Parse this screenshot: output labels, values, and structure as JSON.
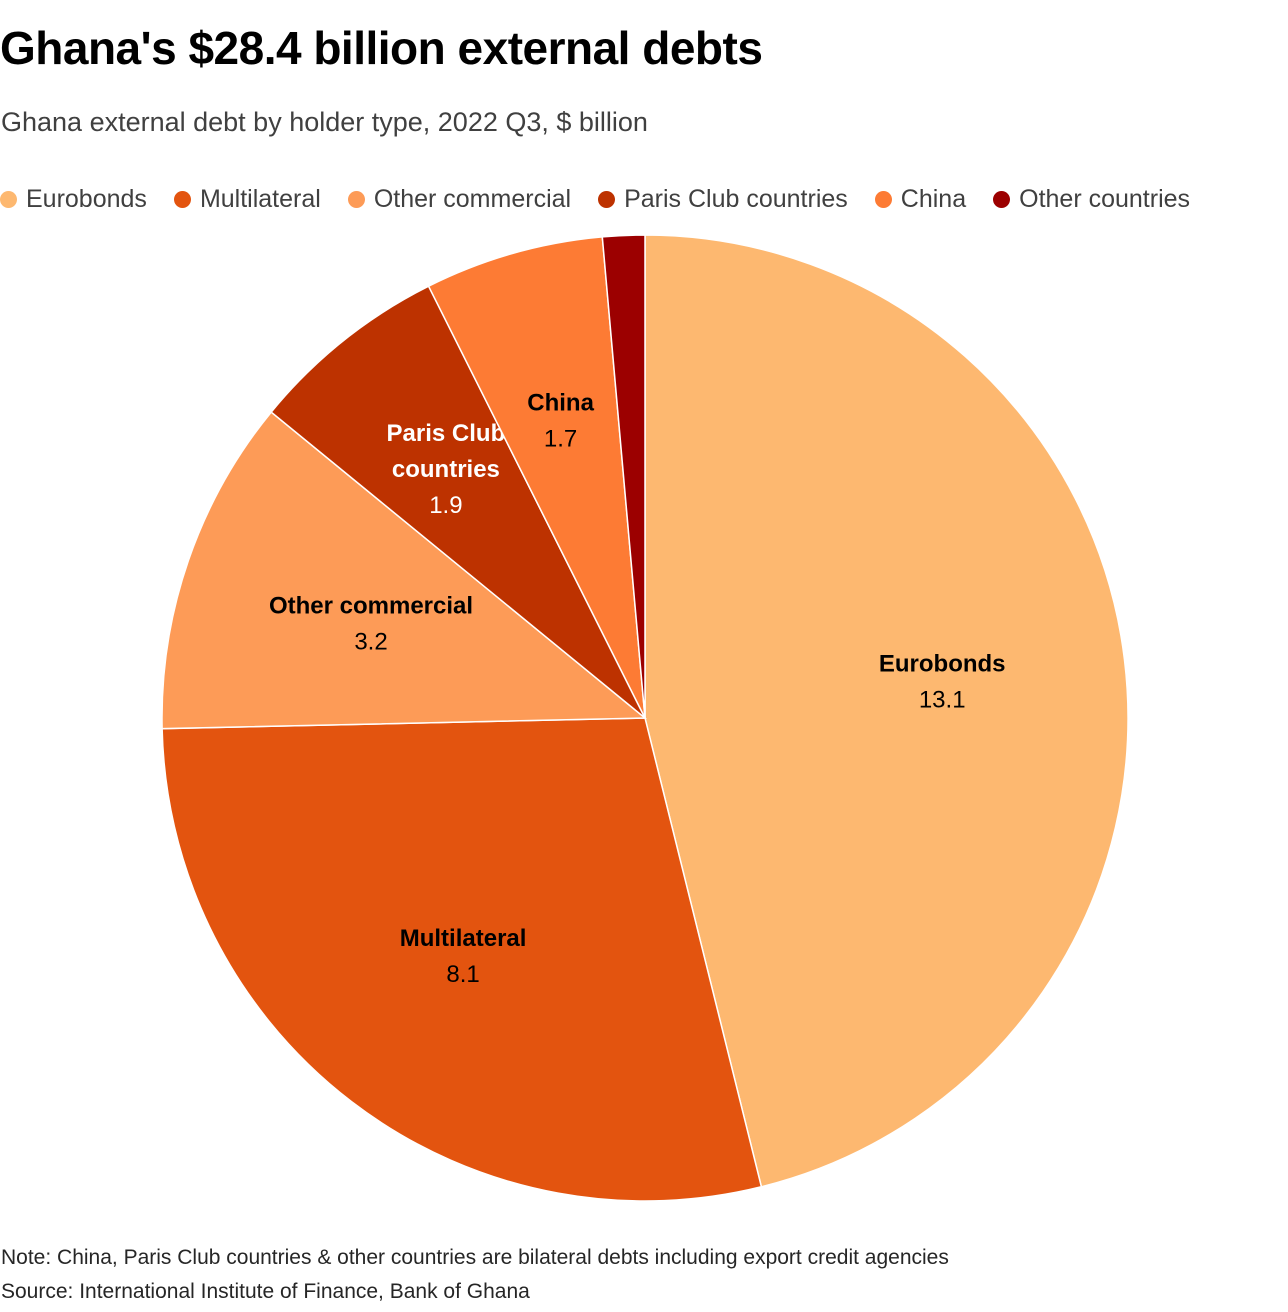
{
  "title": "Ghana's $28.4 billion external debts",
  "subtitle": "Ghana external debt by holder type, 2022 Q3, $ billion",
  "note": "Note: China, Paris Club countries & other countries are bilateral debts including export credit agencies",
  "source": "Source: International Institute of Finance, Bank of Ghana",
  "chart_data": {
    "type": "pie",
    "title": "Ghana's $28.4 billion external debts",
    "subtitle": "Ghana external debt by holder type, 2022 Q3, $ billion",
    "legend_position": "top",
    "total": 28.4,
    "slices": [
      {
        "name": "Eurobonds",
        "label_lines": [
          "Eurobonds"
        ],
        "value": 13.1,
        "value_label": "13.1",
        "color": "#fdb870",
        "label_color": "#000000"
      },
      {
        "name": "Multilateral",
        "label_lines": [
          "Multilateral"
        ],
        "value": 8.1,
        "value_label": "8.1",
        "color": "#e3540f",
        "label_color": "#000000"
      },
      {
        "name": "Other commercial",
        "label_lines": [
          "Other commercial"
        ],
        "value": 3.2,
        "value_label": "3.2",
        "color": "#fd9b57",
        "label_color": "#000000"
      },
      {
        "name": "Paris Club countries",
        "label_lines": [
          "Paris Club",
          "countries"
        ],
        "value": 1.9,
        "value_label": "1.9",
        "color": "#bd3200",
        "label_color": "#ffffff"
      },
      {
        "name": "China",
        "label_lines": [
          "China"
        ],
        "value": 1.7,
        "value_label": "1.7",
        "color": "#fd7b34",
        "label_color": "#000000"
      },
      {
        "name": "Other countries",
        "label_lines": [],
        "value": 0.4,
        "value_label": "",
        "color": "#9c0000",
        "label_color": "#ffffff"
      }
    ]
  }
}
